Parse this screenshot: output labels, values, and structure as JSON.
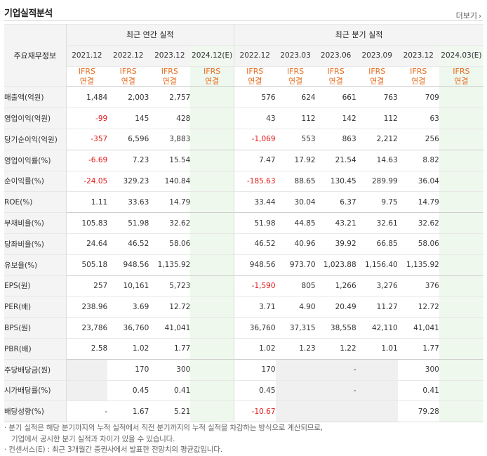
{
  "header": {
    "title": "기업실적분석",
    "more_label": "더보기",
    "more_arrow": "›"
  },
  "table": {
    "corner_label": "주요재무정보",
    "group_annual": "최근 연간 실적",
    "group_quarter": "최근 분기 실적",
    "annual_periods": [
      "2021.12",
      "2022.12",
      "2023.12",
      "2024.12(E)"
    ],
    "quarter_periods": [
      "2022.12",
      "2023.03",
      "2023.06",
      "2023.09",
      "2023.12",
      "2024.03(E)"
    ],
    "ifrs_top": "IFRS",
    "ifrs_bottom": "연결",
    "rows": [
      {
        "label": "매출액(억원)",
        "annual": [
          "1,484",
          "2,003",
          "2,757",
          ""
        ],
        "quarter": [
          "576",
          "624",
          "661",
          "763",
          "709",
          ""
        ],
        "neg_a": [],
        "neg_q": []
      },
      {
        "label": "영업이익(억원)",
        "annual": [
          "-99",
          "145",
          "428",
          ""
        ],
        "quarter": [
          "43",
          "112",
          "142",
          "112",
          "63",
          ""
        ],
        "neg_a": [
          0
        ],
        "neg_q": []
      },
      {
        "label": "당기순이익(억원)",
        "annual": [
          "-357",
          "6,596",
          "3,883",
          ""
        ],
        "quarter": [
          "-1,069",
          "553",
          "863",
          "2,212",
          "256",
          ""
        ],
        "neg_a": [
          0
        ],
        "neg_q": [
          0
        ]
      },
      {
        "label": "영업이익률(%)",
        "annual": [
          "-6.69",
          "7.23",
          "15.54",
          ""
        ],
        "quarter": [
          "7.47",
          "17.92",
          "21.54",
          "14.63",
          "8.82",
          ""
        ],
        "neg_a": [
          0
        ],
        "neg_q": []
      },
      {
        "label": "순이익률(%)",
        "annual": [
          "-24.05",
          "329.23",
          "140.84",
          ""
        ],
        "quarter": [
          "-185.63",
          "88.65",
          "130.45",
          "289.99",
          "36.04",
          ""
        ],
        "neg_a": [
          0
        ],
        "neg_q": [
          0
        ]
      },
      {
        "label": "ROE(%)",
        "annual": [
          "1.11",
          "33.63",
          "14.79",
          ""
        ],
        "quarter": [
          "33.44",
          "30.04",
          "6.37",
          "9.75",
          "14.79",
          ""
        ],
        "neg_a": [],
        "neg_q": []
      },
      {
        "label": "부채비율(%)",
        "annual": [
          "105.83",
          "51.98",
          "32.62",
          ""
        ],
        "quarter": [
          "51.98",
          "44.85",
          "43.21",
          "32.61",
          "32.62",
          ""
        ],
        "neg_a": [],
        "neg_q": []
      },
      {
        "label": "당좌비율(%)",
        "annual": [
          "24.64",
          "46.52",
          "58.06",
          ""
        ],
        "quarter": [
          "46.52",
          "40.96",
          "39.92",
          "66.85",
          "58.06",
          ""
        ],
        "neg_a": [],
        "neg_q": []
      },
      {
        "label": "유보율(%)",
        "annual": [
          "505.18",
          "948.56",
          "1,135.92",
          ""
        ],
        "quarter": [
          "948.56",
          "973.70",
          "1,023.88",
          "1,156.40",
          "1,135.92",
          ""
        ],
        "neg_a": [],
        "neg_q": []
      },
      {
        "label": "EPS(원)",
        "annual": [
          "257",
          "10,161",
          "5,723",
          ""
        ],
        "quarter": [
          "-1,590",
          "805",
          "1,266",
          "3,276",
          "376",
          ""
        ],
        "neg_a": [],
        "neg_q": [
          0
        ]
      },
      {
        "label": "PER(배)",
        "annual": [
          "238.96",
          "3.69",
          "12.72",
          ""
        ],
        "quarter": [
          "3.71",
          "4.90",
          "20.49",
          "11.27",
          "12.72",
          ""
        ],
        "neg_a": [],
        "neg_q": []
      },
      {
        "label": "BPS(원)",
        "annual": [
          "23,786",
          "36,760",
          "41,041",
          ""
        ],
        "quarter": [
          "36,760",
          "37,315",
          "38,558",
          "42,110",
          "41,041",
          ""
        ],
        "neg_a": [],
        "neg_q": []
      },
      {
        "label": "PBR(배)",
        "annual": [
          "2.58",
          "1.02",
          "1.77",
          ""
        ],
        "quarter": [
          "1.02",
          "1.23",
          "1.22",
          "1.01",
          "1.77",
          ""
        ],
        "neg_a": [],
        "neg_q": []
      },
      {
        "label": "주당배당금(원)",
        "annual": [
          "",
          "170",
          "300",
          ""
        ],
        "quarter": [
          "170",
          "",
          "-",
          "",
          "300",
          ""
        ],
        "neg_a": [],
        "neg_q": []
      },
      {
        "label": "시가배당률(%)",
        "annual": [
          "",
          "0.45",
          "0.41",
          ""
        ],
        "quarter": [
          "0.45",
          "",
          "-",
          "",
          "0.41",
          ""
        ],
        "neg_a": [],
        "neg_q": []
      },
      {
        "label": "배당성향(%)",
        "annual": [
          "-",
          "1.67",
          "5.21",
          ""
        ],
        "quarter": [
          "-10.67",
          "",
          "",
          "",
          "79.28",
          ""
        ],
        "neg_a": [],
        "neg_q": [
          0
        ]
      }
    ]
  },
  "notes": {
    "line1": "분기 실적은 해당 분기까지의 누적 실적에서 직전 분기까지의 누적 실적을 차감하는 방식으로 계산되므로,",
    "line2": "기업에서 공시한 분기 실적과 차이가 있을 수 있습니다.",
    "line3": "컨센서스(E) : 최근 3개월간 증권사에서 발표한 전망치의 평균값입니다."
  }
}
